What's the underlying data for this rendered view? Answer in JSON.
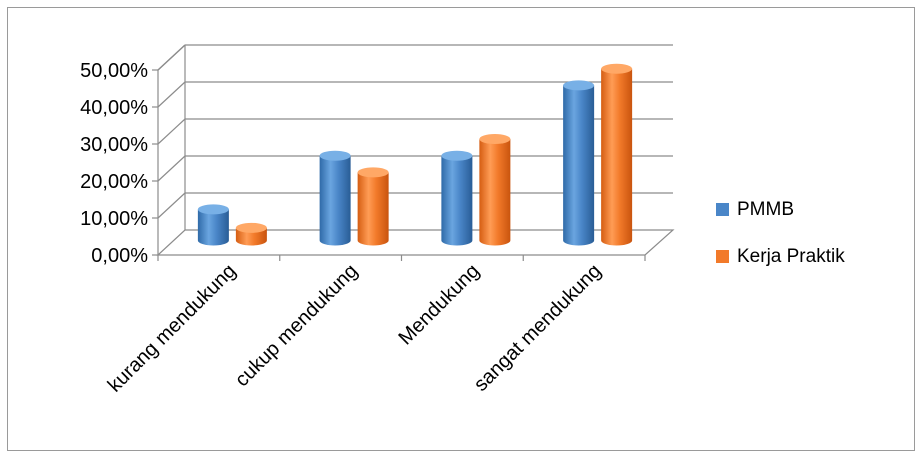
{
  "chart_data": {
    "type": "bar",
    "style": "3d-cylinder",
    "categories": [
      "kurang mendukung",
      "cukup mendukung",
      "Mendukung",
      "sangat mendukung"
    ],
    "series": [
      {
        "name": "PMMB",
        "values": [
          9.5,
          24.0,
          24.0,
          43.0
        ],
        "color": "#4a86c8"
      },
      {
        "name": "Kerja Praktik",
        "values": [
          4.5,
          19.5,
          28.5,
          47.5
        ],
        "color": "#f27a2a"
      }
    ],
    "yticks": [
      "0,00%",
      "10,00%",
      "20,00%",
      "30,00%",
      "40,00%",
      "50,00%"
    ],
    "ylim": [
      0,
      50
    ],
    "grid": true,
    "legend": "right"
  }
}
